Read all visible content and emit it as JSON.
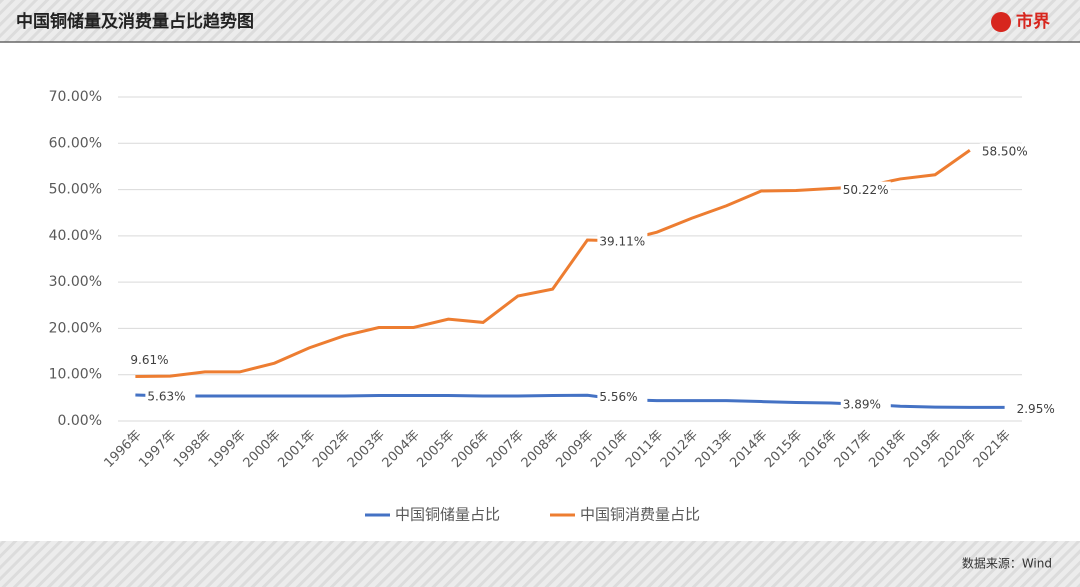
{
  "header": {
    "title": "中国铜储量及消费量占比趋势图",
    "logo": "市界"
  },
  "footer": {
    "source": "数据来源：Wind"
  },
  "chart_data": {
    "type": "line",
    "categories": [
      "1996年",
      "1997年",
      "1998年",
      "1999年",
      "2000年",
      "2001年",
      "2002年",
      "2003年",
      "2004年",
      "2005年",
      "2006年",
      "2007年",
      "2008年",
      "2009年",
      "2010年",
      "2011年",
      "2012年",
      "2013年",
      "2014年",
      "2015年",
      "2016年",
      "2017年",
      "2018年",
      "2019年",
      "2020年",
      "2021年"
    ],
    "series": [
      {
        "name": "中国铜储量占比",
        "color": "#4472c4",
        "values": [
          5.63,
          5.4,
          5.4,
          5.4,
          5.4,
          5.4,
          5.4,
          5.5,
          5.5,
          5.5,
          5.4,
          5.4,
          5.5,
          5.56,
          4.6,
          4.4,
          4.4,
          4.4,
          4.2,
          4.0,
          3.89,
          3.6,
          3.2,
          3.0,
          2.95,
          2.95
        ],
        "value_labels": [
          "5.63%",
          null,
          null,
          null,
          null,
          null,
          null,
          null,
          null,
          null,
          null,
          null,
          null,
          "5.56%",
          null,
          null,
          null,
          null,
          null,
          null,
          "3.89%",
          null,
          null,
          null,
          null,
          "2.95%"
        ]
      },
      {
        "name": "中国铜消费量占比",
        "color": "#ed7d31",
        "values": [
          9.61,
          9.7,
          10.6,
          10.6,
          12.5,
          15.8,
          18.4,
          20.2,
          20.2,
          22.0,
          21.3,
          27.0,
          28.5,
          39.11,
          38.9,
          40.8,
          43.8,
          46.5,
          49.7,
          49.8,
          50.22,
          50.7,
          52.3,
          53.2,
          58.5,
          null
        ],
        "value_labels": [
          "9.61%",
          null,
          null,
          null,
          null,
          null,
          null,
          null,
          null,
          null,
          null,
          null,
          null,
          "39.11%",
          null,
          null,
          null,
          null,
          null,
          null,
          "50.22%",
          null,
          null,
          null,
          "58.50%",
          null
        ]
      }
    ],
    "ylim": [
      0,
      70
    ],
    "yticks": [
      {
        "value": 0,
        "label": "0.00%"
      },
      {
        "value": 10,
        "label": "10.00%"
      },
      {
        "value": 20,
        "label": "20.00%"
      },
      {
        "value": 30,
        "label": "30.00%"
      },
      {
        "value": 40,
        "label": "40.00%"
      },
      {
        "value": 50,
        "label": "50.00%"
      },
      {
        "value": 60,
        "label": "60.00%"
      },
      {
        "value": 70,
        "label": "70.00%"
      }
    ],
    "grid": true,
    "legend": "bottom"
  }
}
